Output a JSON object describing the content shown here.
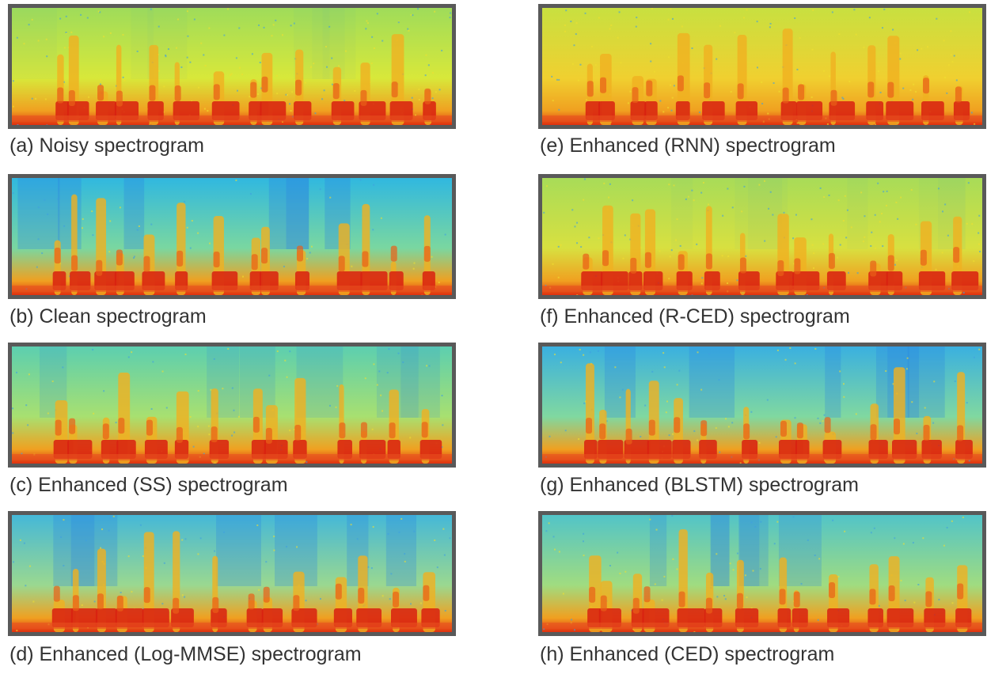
{
  "panels": [
    {
      "caption": "(a) Noisy spectrogram"
    },
    {
      "caption": "(b) Clean spectrogram"
    },
    {
      "caption": "(c) Enhanced (SS) spectrogram"
    },
    {
      "caption": "(d) Enhanced (Log-MMSE) spectrogram"
    },
    {
      "caption": "(e) Enhanced (RNN) spectrogram"
    },
    {
      "caption": "(f) Enhanced (R-CED) spectrogram"
    },
    {
      "caption": "(g) Enhanced (BLSTM) spectrogram"
    },
    {
      "caption": "(h) Enhanced (CED) spectrogram"
    }
  ]
}
